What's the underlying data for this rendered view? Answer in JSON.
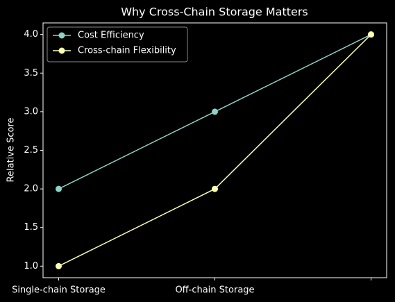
{
  "chart_data": {
    "type": "line",
    "title": "Why Cross-Chain Storage Matters",
    "y_label": "Relative Score",
    "categories": [
      "Single-chain Storage",
      "Off-chain Storage",
      null
    ],
    "series": [
      {
        "name": "Cost Efficiency",
        "color": "#8dd3c7",
        "values": [
          2,
          3,
          4
        ]
      },
      {
        "name": "Cross-chain Flexibility",
        "color": "#feffb3",
        "values": [
          1,
          2,
          4
        ]
      }
    ],
    "ylim": [
      0.85,
      4.15
    ],
    "yticks": [
      {
        "value": 1,
        "label": "1.0"
      },
      {
        "value": 1.5,
        "label": "1.5"
      },
      {
        "value": 2,
        "label": "2.0"
      },
      {
        "value": 2.5,
        "label": "2.5"
      },
      {
        "value": 3,
        "label": "3.0"
      },
      {
        "value": 3.5,
        "label": "3.5"
      },
      {
        "value": 4,
        "label": "4.0"
      }
    ],
    "legend": "upper left",
    "grid": false
  }
}
